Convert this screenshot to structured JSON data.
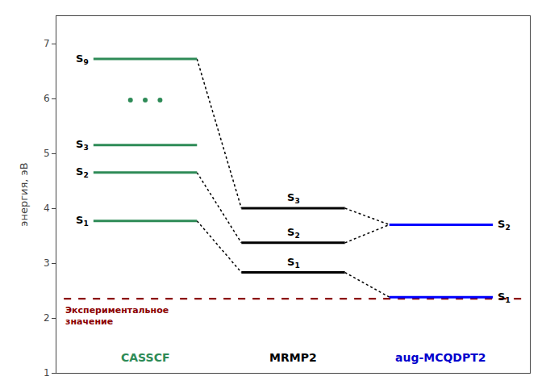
{
  "chart_data": {
    "type": "level",
    "ylabel": "энергия, эВ",
    "ylim": [
      1,
      7.5
    ],
    "yticks": [
      1,
      2,
      3,
      4,
      5,
      6,
      7
    ],
    "grid": false,
    "tick_labels": "y",
    "series": [
      {
        "name": "CASSCF",
        "color": "#2e8b57",
        "label_color": "#2e8b57",
        "values": [
          3.77,
          4.65,
          5.15,
          6.72
        ],
        "labels": [
          {
            "text": "S",
            "sub": "1"
          },
          {
            "text": "S",
            "sub": "2"
          },
          {
            "text": "S",
            "sub": "3"
          },
          {
            "text": "S",
            "sub": "9"
          }
        ],
        "dots": 5.97
      },
      {
        "name": "MRMP2",
        "color": "#000000",
        "label_color": "#000000",
        "values": [
          2.83,
          3.37,
          4.0
        ],
        "labels": [
          {
            "text": "S",
            "sub": "1"
          },
          {
            "text": "S",
            "sub": "2"
          },
          {
            "text": "S",
            "sub": "3"
          }
        ]
      },
      {
        "name": "aug-MCQDPT2",
        "color": "#0000ff",
        "label_color": "#0000cd",
        "values": [
          2.38,
          3.7
        ],
        "labels": [
          {
            "text": "S",
            "sub": "1"
          },
          {
            "text": "S",
            "sub": "2"
          }
        ]
      }
    ],
    "reference": {
      "value": 2.35,
      "label": "Экспериментальное\nзначение",
      "color": "#8b0000"
    },
    "connections": [
      {
        "from": "CASSCF",
        "y1": 6.72,
        "to": "MRMP2",
        "y2": 4.0
      },
      {
        "from": "CASSCF",
        "y1": 4.65,
        "to": "MRMP2",
        "y2": 3.37
      },
      {
        "from": "CASSCF",
        "y1": 3.77,
        "to": "MRMP2",
        "y2": 2.83
      },
      {
        "from": "MRMP2",
        "y1": 4.0,
        "to": "aug-MCQDPT2",
        "y2": 3.7
      },
      {
        "from": "MRMP2",
        "y1": 3.37,
        "to": "aug-MCQDPT2",
        "y2": 3.7
      },
      {
        "from": "MRMP2",
        "y1": 2.83,
        "to": "aug-MCQDPT2",
        "y2": 2.38
      }
    ]
  }
}
